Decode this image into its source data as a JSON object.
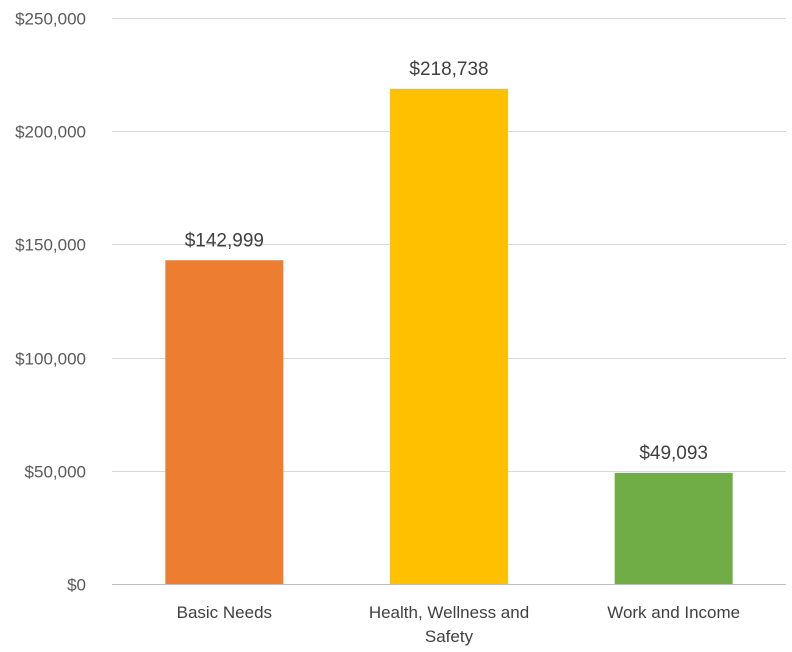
{
  "chart_data": {
    "type": "bar",
    "title": "",
    "xlabel": "",
    "ylabel": "",
    "categories": [
      [
        "Basic Needs"
      ],
      [
        "Health, Wellness and",
        "Safety"
      ],
      [
        "Work and Income"
      ]
    ],
    "values": [
      142999,
      218738,
      49093
    ],
    "data_labels": [
      "$142,999",
      "$218,738",
      "$49,093"
    ],
    "bar_colors": [
      "#ed7d31",
      "#ffc000",
      "#70ad47"
    ],
    "ylim": [
      0,
      250000
    ],
    "yticks": [
      0,
      50000,
      100000,
      150000,
      200000,
      250000
    ],
    "ytick_labels": [
      "$0",
      "$50,000",
      "$100,000",
      "$150,000",
      "$200,000",
      "$250,000"
    ],
    "grid": true,
    "legend": "none"
  }
}
